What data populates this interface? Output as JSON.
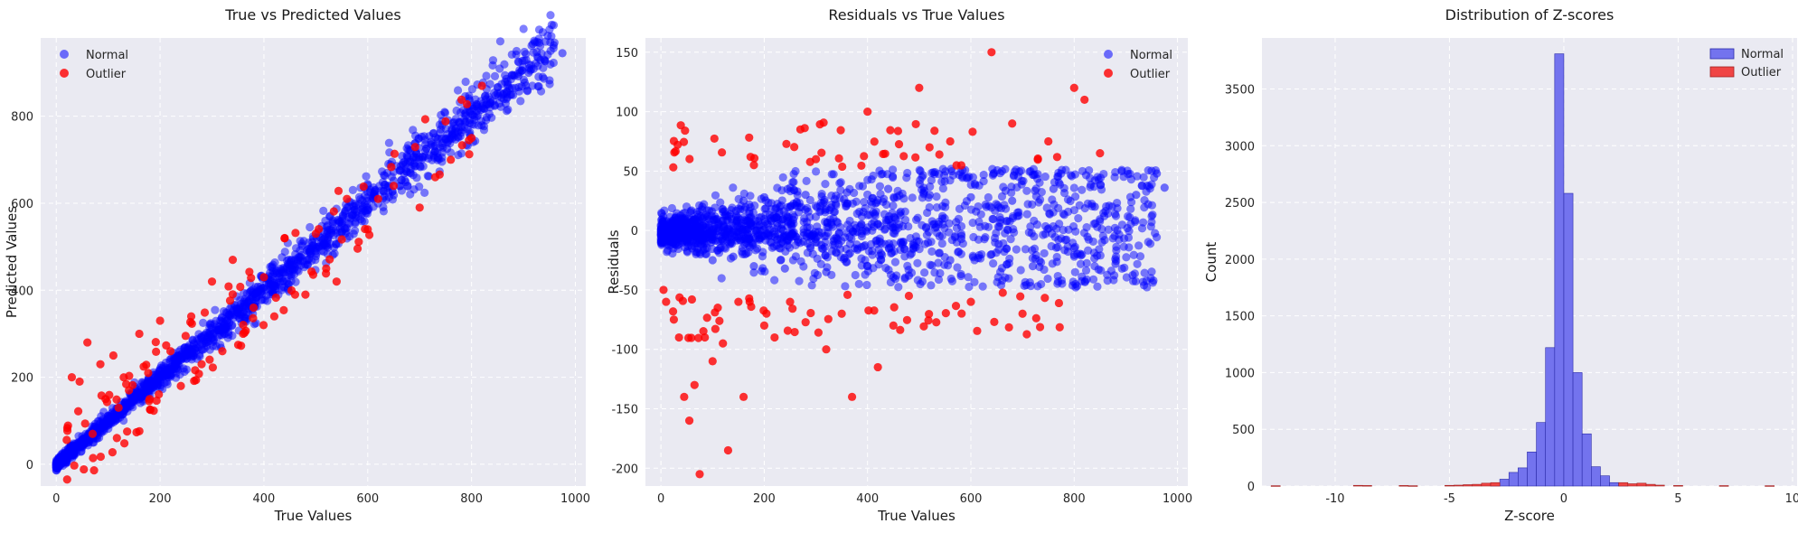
{
  "colors": {
    "normal": "#0000ff",
    "outlier": "#ff0000",
    "normal_hist": "#7373ee",
    "outlier_hist": "#f04545",
    "panel_bg": "#eaeaf2"
  },
  "chart_data": [
    {
      "type": "scatter",
      "title": "True vs Predicted Values",
      "xlabel": "True Values",
      "ylabel": "Predicted Values",
      "xlim": [
        -30,
        1020
      ],
      "ylim": [
        -50,
        980
      ],
      "xticks": [
        0,
        200,
        400,
        600,
        800,
        1000
      ],
      "yticks": [
        0,
        200,
        400,
        600,
        800
      ],
      "grid": true,
      "legend_position": "top-left",
      "series": [
        {
          "name": "Normal",
          "color": "#0000ff",
          "description": "dense diagonal band, predicted ≈ true",
          "x": [
            2,
            10,
            20,
            35,
            50,
            70,
            90,
            110,
            130,
            150,
            170,
            190,
            210,
            230,
            250,
            270,
            290,
            310,
            330,
            350,
            370,
            390,
            410,
            430,
            450,
            470,
            490,
            510,
            530,
            550,
            570,
            590,
            610,
            630,
            650,
            670,
            690,
            710,
            730,
            750,
            770,
            790,
            810,
            830,
            850,
            870,
            890,
            910,
            940,
            975
          ],
          "y": [
            3,
            9,
            22,
            33,
            52,
            68,
            92,
            108,
            132,
            148,
            172,
            188,
            212,
            228,
            252,
            268,
            292,
            308,
            332,
            348,
            372,
            388,
            412,
            428,
            452,
            468,
            492,
            508,
            532,
            548,
            572,
            588,
            612,
            628,
            652,
            668,
            692,
            708,
            732,
            748,
            772,
            788,
            812,
            828,
            852,
            868,
            892,
            900,
            930,
            945
          ]
        },
        {
          "name": "Outlier",
          "color": "#ff0000",
          "x": [
            30,
            45,
            60,
            70,
            85,
            95,
            110,
            120,
            140,
            160,
            180,
            200,
            220,
            240,
            260,
            280,
            300,
            320,
            340,
            360,
            380,
            400,
            420,
            440,
            460,
            480,
            500,
            520,
            540,
            560,
            600,
            620,
            650,
            700,
            730,
            760,
            800,
            820
          ],
          "y": [
            200,
            190,
            280,
            70,
            230,
            150,
            250,
            130,
            170,
            300,
            150,
            330,
            260,
            180,
            340,
            230,
            420,
            260,
            470,
            300,
            360,
            430,
            340,
            520,
            390,
            390,
            530,
            450,
            420,
            610,
            540,
            610,
            640,
            590,
            660,
            700,
            750,
            870
          ]
        }
      ]
    },
    {
      "type": "scatter",
      "title": "Residuals vs True Values",
      "xlabel": "True Values",
      "ylabel": "Residuals",
      "xlim": [
        -30,
        1020
      ],
      "ylim": [
        -215,
        162
      ],
      "xticks": [
        0,
        200,
        400,
        600,
        800,
        1000
      ],
      "yticks": [
        150,
        100,
        50,
        0,
        -50,
        -100,
        -150,
        -200
      ],
      "grid": true,
      "legend_position": "top-right",
      "series": [
        {
          "name": "Normal",
          "color": "#0000ff",
          "description": "dense cloud around 0, roughly -45 to 50",
          "x": [
            5,
            20,
            40,
            60,
            80,
            100,
            120,
            140,
            160,
            180,
            200,
            240,
            280,
            320,
            360,
            400,
            440,
            480,
            520,
            560,
            600,
            640,
            680,
            720,
            760,
            800,
            840,
            880,
            920,
            960,
            975
          ],
          "y": [
            0,
            -8,
            10,
            -15,
            20,
            -25,
            18,
            -22,
            25,
            -30,
            28,
            -32,
            30,
            -35,
            32,
            -30,
            35,
            -38,
            30,
            -25,
            28,
            -20,
            25,
            -30,
            35,
            -15,
            20,
            -28,
            30,
            48,
            36
          ]
        },
        {
          "name": "Outlier",
          "color": "#ff0000",
          "x": [
            5,
            10,
            25,
            35,
            45,
            55,
            60,
            65,
            75,
            85,
            100,
            110,
            120,
            130,
            150,
            160,
            180,
            200,
            220,
            250,
            270,
            300,
            320,
            350,
            370,
            400,
            420,
            450,
            480,
            500,
            520,
            560,
            600,
            640,
            680,
            700,
            750,
            800,
            820,
            850
          ],
          "y": [
            -50,
            -60,
            -75,
            -90,
            -140,
            -160,
            -58,
            -130,
            -205,
            -90,
            -110,
            -65,
            -95,
            -185,
            -60,
            -140,
            55,
            -80,
            -90,
            -60,
            85,
            60,
            -100,
            -70,
            -140,
            100,
            -115,
            -80,
            -55,
            120,
            70,
            75,
            -60,
            150,
            90,
            -70,
            75,
            120,
            110,
            65
          ]
        }
      ]
    },
    {
      "type": "histogram",
      "title": "Distribution of Z-scores",
      "xlabel": "Z-score",
      "ylabel": "Count",
      "xlim": [
        -13.2,
        10.2
      ],
      "ylim": [
        0,
        3950
      ],
      "xticks": [
        -10,
        -5,
        0,
        5,
        10
      ],
      "xtick_labels": [
        "-10",
        "-5",
        "0",
        "5",
        "10"
      ],
      "yticks": [
        0,
        500,
        1000,
        1500,
        2000,
        2500,
        3000,
        3500
      ],
      "bin_width": 0.4,
      "grid": true,
      "legend_position": "top-right",
      "series": [
        {
          "name": "Normal",
          "color": "#7373ee",
          "bins": [
            {
              "x": -3.2,
              "count": 20
            },
            {
              "x": -2.8,
              "count": 60
            },
            {
              "x": -2.4,
              "count": 120
            },
            {
              "x": -2.0,
              "count": 160
            },
            {
              "x": -1.6,
              "count": 300
            },
            {
              "x": -1.2,
              "count": 560
            },
            {
              "x": -0.8,
              "count": 1220
            },
            {
              "x": -0.4,
              "count": 3810
            },
            {
              "x": 0.0,
              "count": 2580
            },
            {
              "x": 0.4,
              "count": 1000
            },
            {
              "x": 0.8,
              "count": 460
            },
            {
              "x": 1.2,
              "count": 170
            },
            {
              "x": 1.6,
              "count": 90
            },
            {
              "x": 2.0,
              "count": 30
            },
            {
              "x": 2.4,
              "count": 10
            }
          ]
        },
        {
          "name": "Outlier",
          "color": "#f04545",
          "bins": [
            {
              "x": -12.8,
              "count": 3
            },
            {
              "x": -9.2,
              "count": 6
            },
            {
              "x": -8.8,
              "count": 5
            },
            {
              "x": -7.2,
              "count": 5
            },
            {
              "x": -6.8,
              "count": 3
            },
            {
              "x": -5.2,
              "count": 6
            },
            {
              "x": -4.8,
              "count": 8
            },
            {
              "x": -4.4,
              "count": 12
            },
            {
              "x": -4.0,
              "count": 15
            },
            {
              "x": -3.6,
              "count": 25
            },
            {
              "x": -3.2,
              "count": 30
            },
            {
              "x": 2.4,
              "count": 30
            },
            {
              "x": 2.8,
              "count": 20
            },
            {
              "x": 3.2,
              "count": 25
            },
            {
              "x": 3.6,
              "count": 15
            },
            {
              "x": 4.0,
              "count": 8
            },
            {
              "x": 4.8,
              "count": 5
            },
            {
              "x": 6.8,
              "count": 4
            },
            {
              "x": 8.8,
              "count": 3
            }
          ]
        }
      ]
    }
  ]
}
